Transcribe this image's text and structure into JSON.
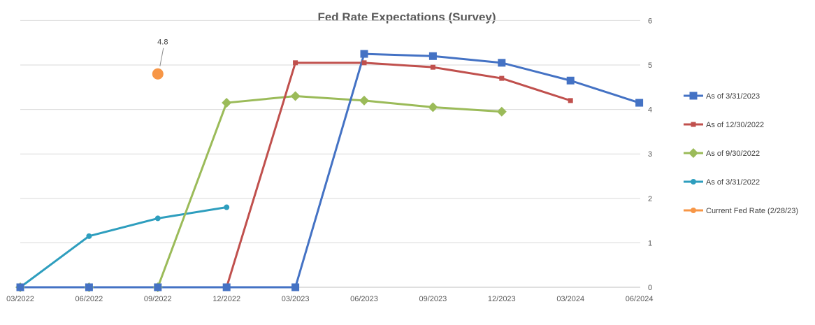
{
  "chart_data": {
    "type": "line",
    "title": "Fed Rate Expectations (Survey)",
    "xlabel": "",
    "ylabel": "",
    "x": [
      "03/2022",
      "06/2022",
      "09/2022",
      "12/2022",
      "03/2023",
      "06/2023",
      "09/2023",
      "12/2023",
      "03/2024",
      "06/2024"
    ],
    "ylim": [
      0,
      6
    ],
    "yticks": [
      "0",
      "1",
      "2",
      "3",
      "4",
      "5",
      "6"
    ],
    "y_axis_side": "right",
    "grid": true,
    "legend_position": "right",
    "series": [
      {
        "name": "As of 3/31/2023",
        "color": "#4472C4",
        "marker": "square",
        "values": [
          0,
          0,
          0,
          0,
          0,
          5.25,
          5.2,
          5.05,
          4.65,
          4.15
        ]
      },
      {
        "name": "As of 12/30/2022",
        "color": "#C0504D",
        "marker": "small-square",
        "values": [
          0,
          0,
          0,
          0,
          5.05,
          5.05,
          4.95,
          4.7,
          4.2,
          null
        ]
      },
      {
        "name": "As of 9/30/2022",
        "color": "#9BBB59",
        "marker": "diamond",
        "values": [
          0,
          0,
          0,
          4.15,
          4.3,
          4.2,
          4.05,
          3.95,
          null,
          null
        ]
      },
      {
        "name": "As of 3/31/2022",
        "color": "#2E9EBE",
        "marker": "circle",
        "values": [
          0,
          1.15,
          1.55,
          1.8,
          null,
          null,
          null,
          null,
          null,
          null
        ]
      },
      {
        "name": "Current Fed Rate (2/28/23)",
        "color": "#F79646",
        "marker": "big-circle",
        "values": [
          null,
          null,
          4.8,
          null,
          null,
          null,
          null,
          null,
          null,
          null
        ]
      }
    ],
    "annotations": [
      {
        "series": "Current Fed Rate (2/28/23)",
        "x": "09/2022",
        "y": 4.8,
        "text": "4.8"
      }
    ]
  }
}
